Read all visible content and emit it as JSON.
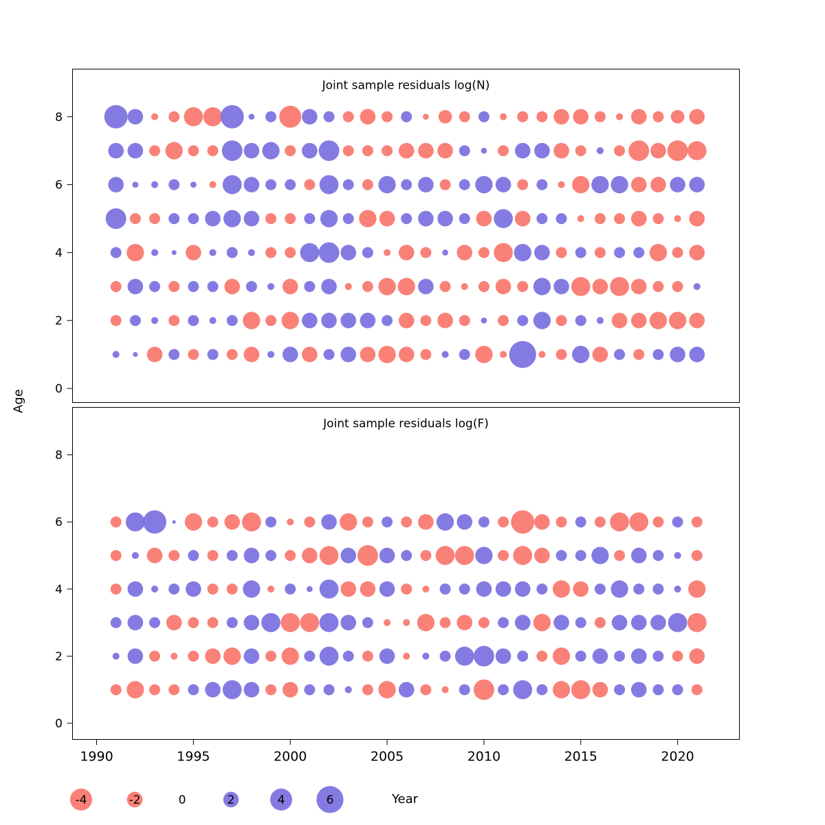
{
  "axes": {
    "y_label": "Age",
    "x_label": "Year",
    "x_tick_labels": [
      "1990",
      "1995",
      "2000",
      "2005",
      "2010",
      "2015",
      "2020"
    ],
    "x_tick_years": [
      1990,
      1995,
      2000,
      2005,
      2010,
      2015,
      2020
    ],
    "y_tick_labels": [
      "0",
      "2",
      "4",
      "6",
      "8"
    ],
    "y_tick_ages": [
      0,
      2,
      4,
      6,
      8
    ]
  },
  "legend": {
    "values": [
      -4,
      -2,
      0,
      2,
      4,
      6
    ],
    "position": "bottom"
  },
  "style": {
    "negative_color": "#f8766d",
    "positive_color": "#7a70e0",
    "title_color": "#7e7e7e",
    "background": "#ffffff"
  },
  "chart_data": [
    {
      "type": "scatter",
      "marker": "bubble-area-by-value",
      "title": "Joint sample residuals log(N)",
      "xlabel": "Year",
      "ylabel": "Age",
      "xlim": [
        1988.7,
        2023.2
      ],
      "ylim": [
        -0.4,
        9.4
      ],
      "grid": false,
      "x": [
        1991,
        1992,
        1993,
        1994,
        1995,
        1996,
        1997,
        1998,
        1999,
        2000,
        2001,
        2002,
        2003,
        2004,
        2005,
        2006,
        2007,
        2008,
        2009,
        2010,
        2011,
        2012,
        2013,
        2014,
        2015,
        2016,
        2017,
        2018,
        2019,
        2020,
        2021
      ],
      "series": [
        {
          "age": 8,
          "values": [
            4.5,
            2,
            -0.4,
            -1,
            -3,
            -3,
            4.5,
            0.3,
            1,
            -4,
            2,
            1,
            -1,
            -2,
            -1,
            1,
            -0.3,
            -1.5,
            -1,
            1,
            -0.4,
            -1,
            -1,
            -2,
            -2,
            -1,
            -0.4,
            -2,
            -1,
            -1.5,
            -2
          ]
        },
        {
          "age": 7,
          "values": [
            2,
            2,
            -1,
            -2.5,
            -1,
            -1,
            3.5,
            2,
            2.5,
            -1,
            2,
            3.5,
            -1,
            -1,
            -1,
            -2,
            -2,
            -2,
            1,
            0.3,
            -1,
            2,
            2,
            -2,
            -1,
            0.4,
            -1,
            -3.5,
            -2,
            -3.5,
            -3
          ]
        },
        {
          "age": 6,
          "values": [
            2,
            0.3,
            0.4,
            1,
            0.3,
            -0.4,
            3,
            2,
            1,
            1,
            -1,
            3,
            1,
            -1,
            2.5,
            1,
            2,
            -1,
            1,
            2.5,
            2,
            -1,
            1,
            -0.4,
            -2.5,
            2.5,
            2.5,
            -2,
            -2,
            2,
            2
          ]
        },
        {
          "age": 5,
          "values": [
            3.5,
            -1,
            -1,
            1,
            1,
            2,
            2.5,
            2,
            -1,
            -1,
            1,
            2.5,
            1,
            -2.5,
            -2,
            1,
            2,
            2,
            1,
            -2,
            3,
            -2,
            1,
            1,
            -0.4,
            -1,
            -1,
            -2,
            -1,
            -0.4,
            -2
          ]
        },
        {
          "age": 4,
          "values": [
            1,
            -2.5,
            0.4,
            0.2,
            -2,
            0.4,
            1,
            0.4,
            -1,
            -1,
            3,
            3.5,
            2,
            1,
            -0.4,
            -2,
            -1,
            0.3,
            -2,
            -1,
            -3,
            2.5,
            2,
            -1,
            1,
            -1,
            1,
            1,
            -2.5,
            -1,
            -2
          ]
        },
        {
          "age": 3,
          "values": [
            -1,
            2,
            1,
            -1,
            1,
            1,
            -2,
            1,
            0.4,
            -2,
            1,
            2,
            -0.4,
            -1,
            -2.5,
            -2.5,
            2,
            -1,
            -0.4,
            -1,
            -2,
            -1,
            2.5,
            2,
            -3,
            -2,
            -3,
            -2,
            -1,
            -1,
            0.4
          ]
        },
        {
          "age": 2,
          "values": [
            -1,
            1,
            0.4,
            -1,
            1,
            0.4,
            1,
            -2.5,
            -1,
            -2.5,
            2,
            2,
            2,
            2,
            1,
            -2,
            -1,
            -2,
            -1,
            0.3,
            -1,
            1,
            2.5,
            -1,
            1,
            0.4,
            -2,
            -2,
            -2.5,
            -2.5,
            -2
          ]
        },
        {
          "age": 1,
          "values": [
            0.4,
            0.2,
            -2,
            1,
            -1,
            1,
            -1,
            -2,
            0.4,
            2,
            -2,
            1,
            2,
            -2,
            -2.5,
            -2,
            -1,
            0.4,
            1,
            -2.5,
            -0.4,
            6,
            -0.4,
            -1,
            2.5,
            -2,
            1,
            -1,
            1,
            2,
            2
          ]
        }
      ]
    },
    {
      "type": "scatter",
      "marker": "bubble-area-by-value",
      "title": "Joint sample residuals log(F)",
      "xlabel": "Year",
      "ylabel": "Age",
      "xlim": [
        1988.7,
        2023.2
      ],
      "ylim": [
        -0.4,
        9.4
      ],
      "grid": false,
      "x": [
        1991,
        1992,
        1993,
        1994,
        1995,
        1996,
        1997,
        1998,
        1999,
        2000,
        2001,
        2002,
        2003,
        2004,
        2005,
        2006,
        2007,
        2008,
        2009,
        2010,
        2011,
        2012,
        2013,
        2014,
        2015,
        2016,
        2017,
        2018,
        2019,
        2020,
        2021
      ],
      "series": [
        {
          "age": 6,
          "values": [
            -1,
            3,
            4.5,
            0.1,
            -2.5,
            -1,
            -2,
            -3,
            1,
            -0.4,
            -1,
            2,
            -2.5,
            -1,
            1,
            -1,
            -2,
            2.5,
            2,
            1,
            -1,
            -4.5,
            -2,
            -1,
            1,
            -1,
            -3,
            -3,
            -1,
            1,
            -1
          ]
        },
        {
          "age": 5,
          "values": [
            -1,
            0.4,
            -2,
            -1,
            1,
            -1,
            1,
            2,
            1,
            -1,
            -2,
            -3,
            2,
            -3.5,
            2,
            1,
            -1,
            -3,
            -3,
            2.5,
            -1,
            -3,
            -2,
            1,
            1,
            2.5,
            -1,
            2,
            1,
            0.4,
            -1
          ]
        },
        {
          "age": 4,
          "values": [
            -1,
            2,
            0.4,
            1,
            2,
            -1,
            -1,
            2.5,
            -0.4,
            1,
            0.3,
            3,
            -2,
            -2,
            2,
            -1,
            -0.4,
            1,
            1,
            2,
            2,
            2,
            1,
            -2.5,
            -2,
            1,
            2.5,
            1,
            1,
            0.4,
            -2.5
          ]
        },
        {
          "age": 3,
          "values": [
            1,
            2,
            1,
            -2,
            -1,
            -1,
            1,
            2,
            3,
            -3,
            -3,
            3,
            2,
            1,
            -0.4,
            -0.4,
            -2.5,
            -1,
            -2,
            -1,
            1,
            2,
            -2.5,
            2,
            1,
            -1,
            2,
            2,
            2,
            3,
            -3
          ]
        },
        {
          "age": 2,
          "values": [
            0.4,
            2,
            -1,
            -0.4,
            -1,
            -2,
            -2.5,
            2,
            -1,
            -2.5,
            1,
            3,
            1,
            -1,
            2,
            -0.4,
            0.4,
            1,
            3,
            3.5,
            2,
            1,
            -1,
            -2.5,
            1,
            2,
            1,
            2,
            1,
            -1,
            -2
          ]
        },
        {
          "age": 1,
          "values": [
            -1,
            -2.5,
            -1,
            -1,
            1,
            2,
            3,
            2,
            -1,
            -2,
            1,
            1,
            0.4,
            -1,
            -2.5,
            2,
            -1,
            -0.4,
            1,
            -3.5,
            1,
            3,
            1,
            -2.5,
            -3,
            -2,
            1,
            2,
            1,
            1,
            -1
          ]
        }
      ]
    }
  ]
}
